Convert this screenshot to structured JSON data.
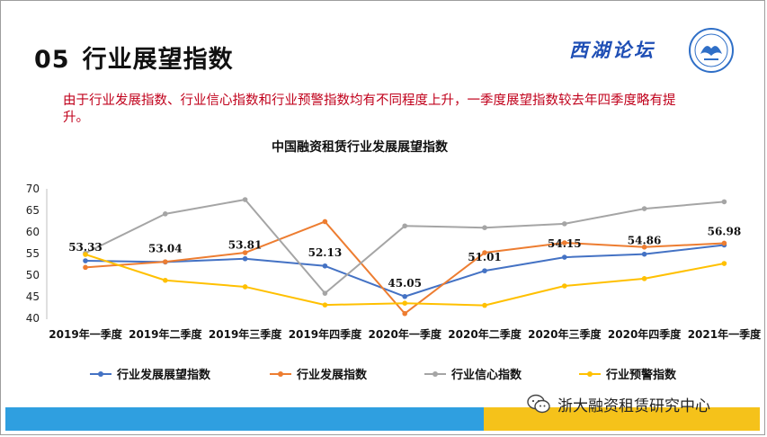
{
  "slide": {
    "number": "05",
    "title": "行业展望指数",
    "logo_text": "西湖论坛",
    "summary": "由于行业发展指数、行业信心指数和行业预警指数均有不同程度上升，一季度展望指数较去年四季度略有提升。",
    "footer_text": "浙大融资租赁研究中心"
  },
  "colors": {
    "accent_red": "#c0001b",
    "footer_blue": "#2f9fe0",
    "footer_yellow": "#f5c21a"
  },
  "icons": [
    "emblem-icon",
    "wechat-icon"
  ],
  "chart_data": {
    "type": "line",
    "title": "中国融资租赁行业发展展望指数",
    "categories": [
      "2019年一季度",
      "2019年二季度",
      "2019年三季度",
      "2019年四季度",
      "2020年一季度",
      "2020年二季度",
      "2020年三季度",
      "2020年四季度",
      "2021年一季度"
    ],
    "ylim": [
      40,
      70
    ],
    "yticks": [
      40,
      45,
      50,
      55,
      60,
      65,
      70
    ],
    "grid": false,
    "legend_position": "bottom",
    "series": [
      {
        "name": "行业发展展望指数",
        "color": "#4472c4",
        "values": [
          53.33,
          53.04,
          53.81,
          52.13,
          45.05,
          51.01,
          54.15,
          54.86,
          56.98
        ],
        "data_labels": [
          "53.33",
          "53.04",
          "53.81",
          "52.13",
          "45.05",
          "51.01",
          "54.15",
          "54.86",
          "56.98"
        ]
      },
      {
        "name": "行业发展指数",
        "color": "#ed7d31",
        "values": [
          51.8,
          53.1,
          55.2,
          62.4,
          41.1,
          55.2,
          57.5,
          56.5,
          57.4
        ]
      },
      {
        "name": "行业信心指数",
        "color": "#a5a5a5",
        "values": [
          55.1,
          64.2,
          67.5,
          45.8,
          61.4,
          61.0,
          61.9,
          65.4,
          67.0
        ]
      },
      {
        "name": "行业预警指数",
        "color": "#ffc000",
        "values": [
          54.8,
          48.8,
          47.3,
          43.1,
          43.5,
          43.0,
          47.5,
          49.2,
          52.7
        ]
      }
    ]
  }
}
